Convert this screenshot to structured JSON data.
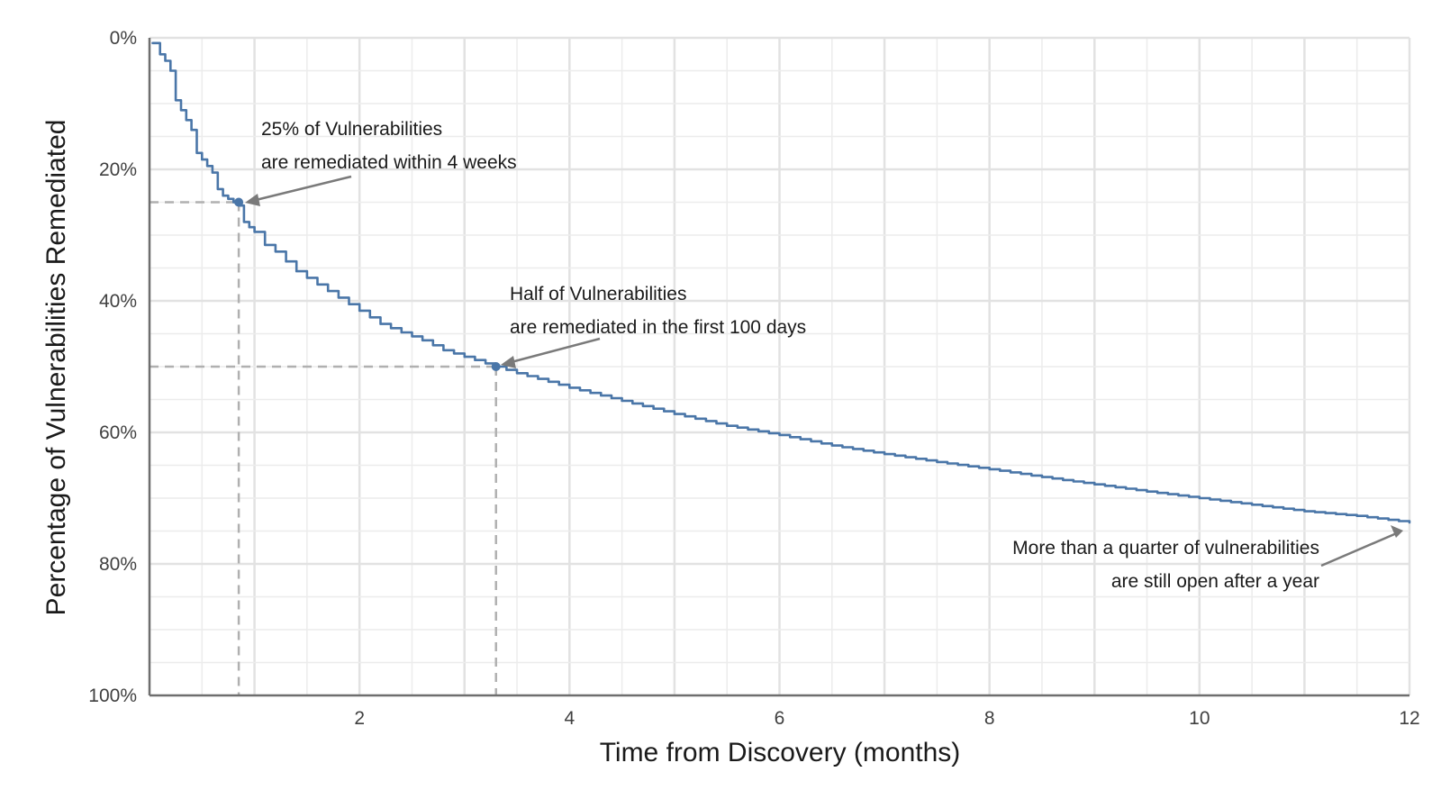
{
  "chart_data": {
    "type": "line",
    "xlabel": "Time from Discovery (months)",
    "ylabel": "Percentage of Vulnerabilities Remediated",
    "xlim": [
      0,
      12
    ],
    "ylim": [
      0,
      100
    ],
    "y_inverted": true,
    "grid": true,
    "x_ticks": [
      2,
      4,
      6,
      8,
      10,
      12
    ],
    "x_tick_labels": [
      "2",
      "4",
      "6",
      "8",
      "10",
      "12"
    ],
    "y_ticks": [
      0,
      20,
      40,
      60,
      80,
      100
    ],
    "y_tick_labels": [
      "0%",
      "20%",
      "40%",
      "60%",
      "80%",
      "100%"
    ],
    "series": [
      {
        "color": "#4a76a8",
        "x": [
          0.03,
          0.1,
          0.15,
          0.2,
          0.25,
          0.3,
          0.35,
          0.4,
          0.45,
          0.5,
          0.55,
          0.6,
          0.65,
          0.7,
          0.75,
          0.8,
          0.85,
          0.9,
          0.95,
          1.0,
          1.1,
          1.2,
          1.3,
          1.4,
          1.5,
          1.6,
          1.7,
          1.8,
          1.9,
          2.0,
          2.2,
          2.4,
          2.6,
          2.8,
          3.0,
          3.2,
          3.3,
          3.5,
          3.8,
          4.0,
          4.5,
          5.0,
          5.5,
          6.0,
          6.5,
          7.0,
          7.5,
          8.0,
          8.5,
          9.0,
          9.5,
          10.0,
          10.5,
          11.0,
          11.5,
          12.0
        ],
        "y": [
          0.8,
          2.5,
          3.5,
          5,
          9.5,
          11,
          12.5,
          14,
          17.5,
          18.5,
          19.5,
          20.5,
          23,
          24,
          24.5,
          25,
          25.5,
          28,
          28.8,
          29.5,
          31.5,
          32.5,
          34,
          35.5,
          36.5,
          37.5,
          38.5,
          39.5,
          40.5,
          41.5,
          43.5,
          44.8,
          46,
          47.5,
          48.5,
          49.5,
          50,
          51,
          52.3,
          53.2,
          55.2,
          57.2,
          59,
          60.4,
          62,
          63.3,
          64.5,
          65.6,
          66.8,
          67.9,
          69,
          70,
          71,
          72,
          72.7,
          73.7
        ]
      }
    ],
    "highlights": [
      {
        "x": 0.85,
        "y": 25
      },
      {
        "x": 3.3,
        "y": 50
      }
    ],
    "annotations": [
      {
        "line1": "25% of Vulnerabilities",
        "line2": "are remediated within 4 weeks"
      },
      {
        "line1": "Half of Vulnerabilities",
        "line2": "are remediated in the first 100 days"
      },
      {
        "line1": "More than a quarter of vulnerabilities",
        "line2": "are still open after a year"
      }
    ]
  }
}
